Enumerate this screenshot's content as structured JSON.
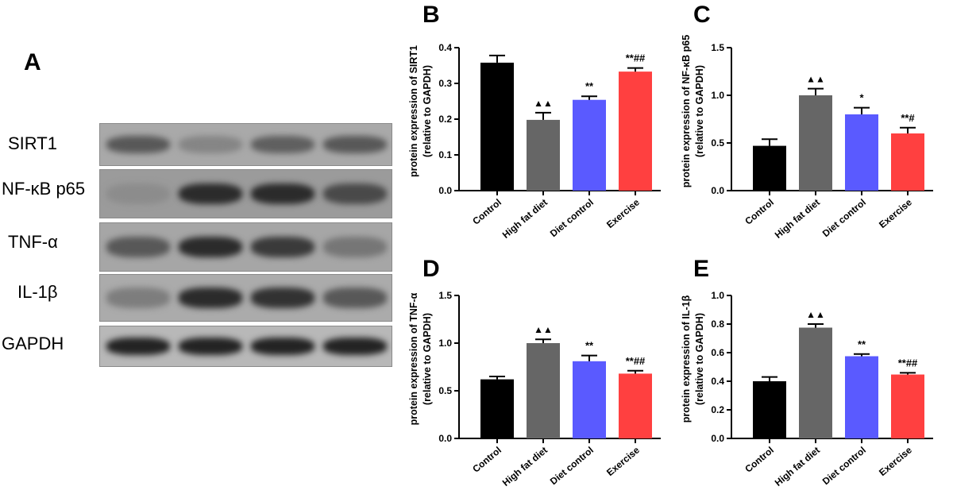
{
  "panel_letters": {
    "A": "A",
    "B": "B",
    "C": "C",
    "D": "D",
    "E": "E"
  },
  "western_blot": {
    "rows": [
      {
        "label": "SIRT1",
        "intensities": [
          0.55,
          0.25,
          0.5,
          0.55
        ]
      },
      {
        "label": "NF-κB p65",
        "intensities": [
          0.2,
          0.85,
          0.85,
          0.65
        ]
      },
      {
        "label": "TNF-α",
        "intensities": [
          0.55,
          0.85,
          0.75,
          0.35
        ]
      },
      {
        "label": "IL-1β",
        "intensities": [
          0.3,
          0.85,
          0.8,
          0.55
        ]
      },
      {
        "label": "GAPDH",
        "intensities": [
          0.9,
          0.9,
          0.9,
          0.9
        ]
      }
    ]
  },
  "chart_data": [
    {
      "panel": "B",
      "type": "bar",
      "categories": [
        "Control",
        "High fat diet",
        "Diet control",
        "Exercise"
      ],
      "values": [
        0.358,
        0.198,
        0.254,
        0.333
      ],
      "errors": [
        0.02,
        0.02,
        0.01,
        0.01
      ],
      "annotations": [
        "",
        "▲▲",
        "**",
        "**##"
      ],
      "ylabel": [
        "protein expression of SIRT1",
        "(relative to GAPDH)"
      ],
      "ylim": [
        0,
        0.4
      ],
      "yticks": [
        "0.0",
        "0.1",
        "0.2",
        "0.3",
        "0.4"
      ],
      "colors": [
        "#000000",
        "#666666",
        "#5a5aff",
        "#ff4040"
      ]
    },
    {
      "panel": "C",
      "type": "bar",
      "categories": [
        "Control",
        "High fat diet",
        "Diet control",
        "Exercise"
      ],
      "values": [
        0.47,
        1.0,
        0.8,
        0.6
      ],
      "errors": [
        0.07,
        0.07,
        0.07,
        0.06
      ],
      "annotations": [
        "",
        "▲▲",
        "*",
        "**#"
      ],
      "ylabel": [
        "protein expression of NF-κB p65",
        "(relative to GAPDH)"
      ],
      "ylim": [
        0,
        1.5
      ],
      "yticks": [
        "0.0",
        "0.5",
        "1.0",
        "1.5"
      ],
      "colors": [
        "#000000",
        "#666666",
        "#5a5aff",
        "#ff4040"
      ]
    },
    {
      "panel": "D",
      "type": "bar",
      "categories": [
        "Control",
        "High fat diet",
        "Diet control",
        "Exercise"
      ],
      "values": [
        0.62,
        1.0,
        0.81,
        0.68
      ],
      "errors": [
        0.03,
        0.04,
        0.06,
        0.03
      ],
      "annotations": [
        "",
        "▲▲",
        "**",
        "**##"
      ],
      "ylabel": [
        "protein expression of TNF-α",
        "(relative to GAPDH)"
      ],
      "ylim": [
        0,
        1.5
      ],
      "yticks": [
        "0.0",
        "0.5",
        "1.0",
        "1.5"
      ],
      "colors": [
        "#000000",
        "#666666",
        "#5a5aff",
        "#ff4040"
      ]
    },
    {
      "panel": "E",
      "type": "bar",
      "categories": [
        "Control",
        "High fat diet",
        "Diet control",
        "Exercise"
      ],
      "values": [
        0.4,
        0.775,
        0.575,
        0.447
      ],
      "errors": [
        0.03,
        0.025,
        0.015,
        0.012
      ],
      "annotations": [
        "",
        "▲▲",
        "**",
        "**##"
      ],
      "ylabel": [
        "protein expression of IL-1β",
        "(relative to GAPDH)"
      ],
      "ylim": [
        0,
        1.0
      ],
      "yticks": [
        "0.0",
        "0.2",
        "0.4",
        "0.6",
        "0.8",
        "1.0"
      ],
      "colors": [
        "#000000",
        "#666666",
        "#5a5aff",
        "#ff4040"
      ]
    }
  ]
}
